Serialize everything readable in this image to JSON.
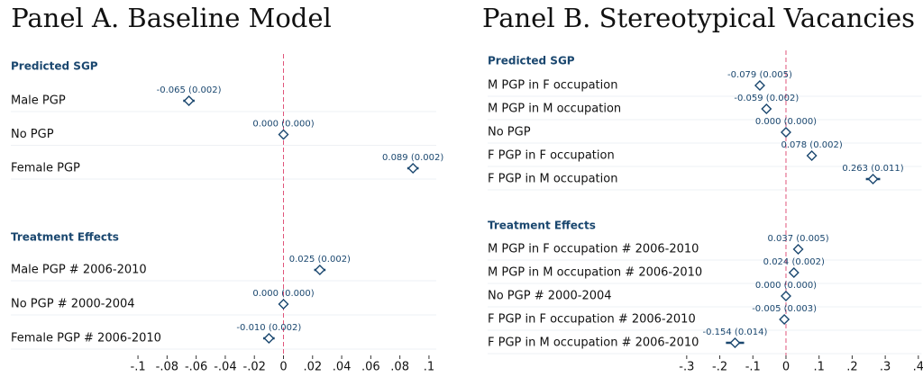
{
  "chart_data": [
    {
      "type": "coefplot",
      "title": "Panel A. Baseline Model",
      "color": "#1a476f",
      "ref_line_color": "#e0557a",
      "xline": 0,
      "xlim": [
        -0.105,
        0.105
      ],
      "xticks": [
        {
          "value": -0.1,
          "label": "-.1"
        },
        {
          "value": -0.08,
          "label": "-.08"
        },
        {
          "value": -0.06,
          "label": "-.06"
        },
        {
          "value": -0.04,
          "label": "-.04"
        },
        {
          "value": -0.02,
          "label": "-.02"
        },
        0,
        {
          "value": 0.02,
          "label": ".02"
        },
        {
          "value": 0.04,
          "label": ".04"
        },
        {
          "value": 0.06,
          "label": ".06"
        },
        {
          "value": 0.08,
          "label": ".08"
        },
        {
          "value": 0.1,
          "label": ".1"
        }
      ],
      "series": [
        {
          "name": "Predicted SGP",
          "categories": [
            "Male PGP",
            "No PGP",
            "Female PGP"
          ],
          "values": [
            -0.065,
            0,
            0.089
          ],
          "errors": [
            0.002,
            0,
            0.002
          ],
          "value_labels": [
            "-0.065 (0.002)",
            "0.000 (0.000)",
            "0.089 (0.002)"
          ]
        },
        {
          "name": "Treatment Effects",
          "categories": [
            "Male PGP # 2006-2010",
            "No PGP # 2000-2004",
            "Female PGP # 2006-2010"
          ],
          "values": [
            0.025,
            0,
            -0.01
          ],
          "errors": [
            0.002,
            0,
            0.002
          ],
          "value_labels": [
            "0.025 (0.002)",
            "0.000 (0.000)",
            "-0.010 (0.002)"
          ]
        }
      ]
    },
    {
      "type": "coefplot",
      "title": "Panel B. Stereotypical Vacancies",
      "color": "#1a476f",
      "ref_line_color": "#e0557a",
      "xline": 0,
      "xlim": [
        -0.32,
        0.41
      ],
      "xticks": [
        {
          "value": -0.3,
          "label": "-.3"
        },
        {
          "value": -0.2,
          "label": "-.2"
        },
        {
          "value": -0.1,
          "label": "-.1"
        },
        0,
        {
          "value": 0.1,
          "label": ".1"
        },
        {
          "value": 0.2,
          "label": ".2"
        },
        {
          "value": 0.3,
          "label": ".3"
        },
        {
          "value": 0.4,
          "label": ".4"
        }
      ],
      "series": [
        {
          "name": "Predicted SGP",
          "categories": [
            "M PGP in F occupation",
            "M PGP in M occupation",
            "No PGP",
            "F PGP in F occupation",
            "F PGP in M occupation"
          ],
          "values": [
            -0.079,
            -0.059,
            0,
            0.078,
            0.263
          ],
          "errors": [
            0.005,
            0.002,
            0,
            0.002,
            0.011
          ],
          "value_labels": [
            "-0.079 (0.005)",
            "-0.059 (0.002)",
            "0.000 (0.000)",
            "0.078 (0.002)",
            "0.263 (0.011)"
          ]
        },
        {
          "name": "Treatment Effects",
          "categories": [
            "M PGP in F occupation # 2006-2010",
            "M PGP in M occupation # 2006-2010",
            "No PGP # 2000-2004",
            "F PGP in F occupation # 2006-2010",
            "F PGP in M occupation # 2006-2010"
          ],
          "values": [
            0.037,
            0.024,
            0,
            -0.005,
            -0.154
          ],
          "errors": [
            0.005,
            0.002,
            0,
            0.003,
            0.014
          ],
          "value_labels": [
            "0.037 (0.005)",
            "0.024 (0.002)",
            "0.000 (0.000)",
            "-0.005 (0.003)",
            "-0.154 (0.014)"
          ]
        }
      ]
    }
  ]
}
